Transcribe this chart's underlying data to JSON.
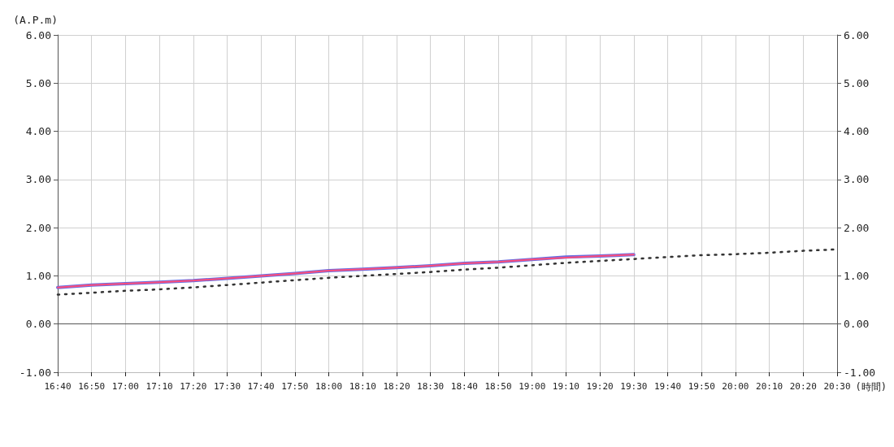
{
  "chart_data": {
    "type": "line",
    "xlabel": "(時間)",
    "ylabel": "(A.P.m)",
    "categories": [
      "16:40",
      "16:50",
      "17:00",
      "17:10",
      "17:20",
      "17:30",
      "17:40",
      "17:50",
      "18:00",
      "18:10",
      "18:20",
      "18:30",
      "18:40",
      "18:50",
      "19:00",
      "19:10",
      "19:20",
      "19:30",
      "19:40",
      "19:50",
      "20:00",
      "20:10",
      "20:20",
      "20:30"
    ],
    "series": [
      {
        "color": "#6a6ee0",
        "line_style": "solid",
        "values": [
          0.76,
          0.81,
          0.84,
          0.87,
          0.9,
          0.95,
          1.0,
          1.05,
          1.11,
          1.14,
          1.17,
          1.21,
          1.26,
          1.29,
          1.34,
          1.39,
          1.41,
          1.44,
          null,
          null,
          null,
          null,
          null,
          null
        ]
      },
      {
        "color": "#ff4d7a",
        "line_style": "solid",
        "values": [
          0.76,
          0.81,
          0.84,
          0.87,
          0.9,
          0.95,
          1.0,
          1.05,
          1.11,
          1.14,
          1.17,
          1.21,
          1.26,
          1.29,
          1.34,
          1.38,
          1.41,
          1.44,
          null,
          null,
          null,
          null,
          null,
          null
        ]
      },
      {
        "color": "#333333",
        "line_style": "dotted",
        "values": [
          0.61,
          0.65,
          0.69,
          0.72,
          0.76,
          0.81,
          0.86,
          0.91,
          0.96,
          1.0,
          1.04,
          1.08,
          1.13,
          1.17,
          1.22,
          1.27,
          1.31,
          1.35,
          1.39,
          1.43,
          1.45,
          1.48,
          1.52,
          1.55
        ]
      }
    ],
    "ylim": [
      -1,
      6
    ],
    "yticks": [
      {
        "value": -1,
        "label": "-1.00"
      },
      {
        "value": 0,
        "label": "0.00"
      },
      {
        "value": 1,
        "label": "1.00"
      },
      {
        "value": 2,
        "label": "2.00"
      },
      {
        "value": 3,
        "label": "3.00"
      },
      {
        "value": 4,
        "label": "4.00"
      },
      {
        "value": 5,
        "label": "5.00"
      },
      {
        "value": 6,
        "label": "6.00"
      }
    ],
    "y2lim": [
      -1,
      6
    ],
    "y2ticks": [
      {
        "value": -1,
        "label": "-1.00"
      },
      {
        "value": 0,
        "label": "0.00"
      },
      {
        "value": 1,
        "label": "1.00"
      },
      {
        "value": 2,
        "label": "2.00"
      },
      {
        "value": 3,
        "label": "3.00"
      },
      {
        "value": 4,
        "label": "4.00"
      },
      {
        "value": 5,
        "label": "5.00"
      },
      {
        "value": 6,
        "label": "6.00"
      }
    ],
    "ref_lines": [
      {
        "axis": "y",
        "value": 0,
        "color": "#555555"
      }
    ],
    "grid": true,
    "marker": "none"
  }
}
